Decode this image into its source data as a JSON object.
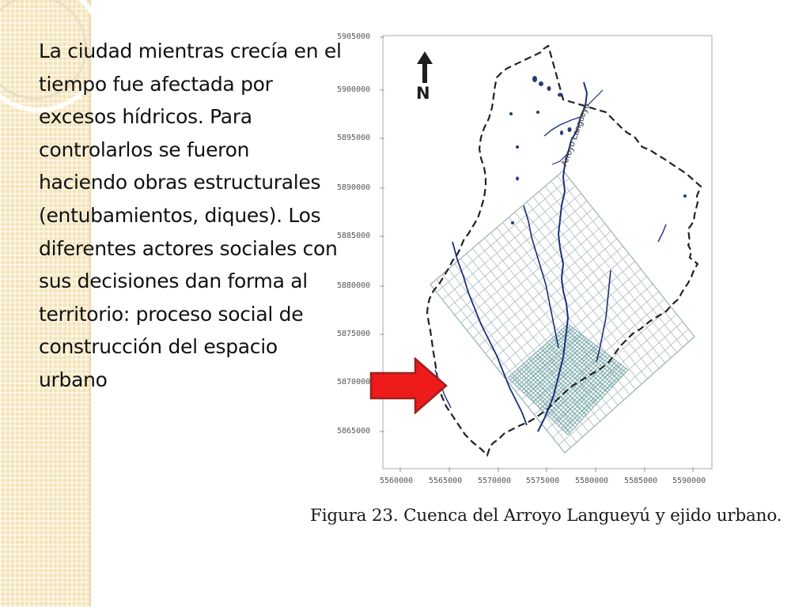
{
  "slide": {
    "body_text": "La ciudad  mientras crecía en el tiempo fue afectada por excesos hídricos.  Para controlarlos se fueron haciendo obras estructurales (entubamientos, diques). Los diferentes  actores sociales con sus decisiones dan forma al territorio: proceso social de construcción del espacio urbano",
    "caption": "Figura 23. Cuenca del Arroyo Langueyú y ejido urbano."
  },
  "map": {
    "north_label": "N",
    "stream_label": "Arroyo Langueyú",
    "y_tick_labels": [
      "5905000",
      "5900000",
      "5895000",
      "5890000",
      "5885000",
      "5880000",
      "5875000",
      "5870000",
      "5865000"
    ],
    "x_tick_labels": [
      "5560000",
      "5565000",
      "5570000",
      "5575000",
      "5580000",
      "5585000",
      "5590000"
    ],
    "colors": {
      "arrow": "#ee1b1b",
      "arrow_border": "#9e2020",
      "street_grid": "#9ab3b6",
      "urban_core": "#5f9ea0",
      "stream": "#1f2f7a",
      "basin_boundary": "#222222"
    }
  }
}
